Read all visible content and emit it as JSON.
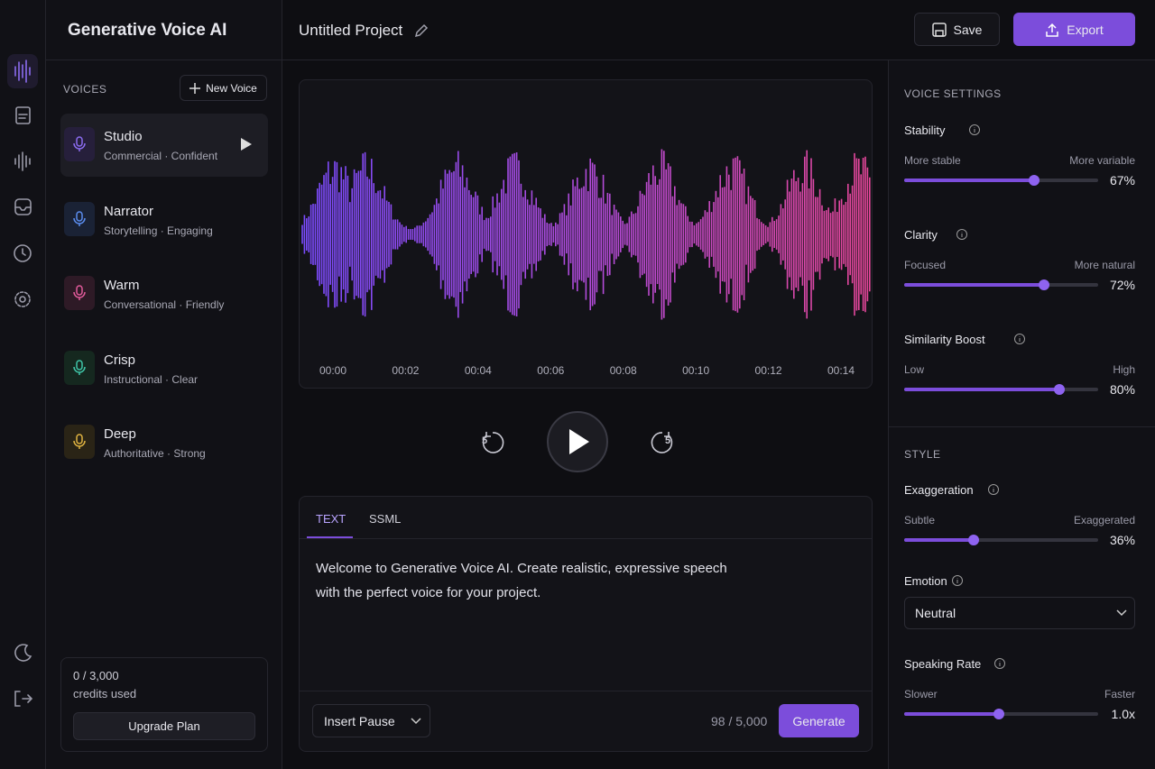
{
  "app": {
    "title": "Generative Voice AI"
  },
  "header": {
    "project": "Untitled Project",
    "save": "Save",
    "export": "Export"
  },
  "voices": {
    "heading": "VOICES",
    "new_voice": "New Voice",
    "items": [
      {
        "name": "Studio",
        "description": "Commercial · Confident"
      },
      {
        "name": "Narrator",
        "description": "Storytelling · Engaging"
      },
      {
        "name": "Warm",
        "description": "Conversational · Friendly"
      },
      {
        "name": "Crisp",
        "description": "Instructional · Clear"
      },
      {
        "name": "Deep",
        "description": "Authoritative · Strong"
      }
    ]
  },
  "credits": {
    "usage": "0 / 3,000",
    "caption": "credits used",
    "upgrade": "Upgrade Plan"
  },
  "player": {
    "timeline": [
      "00:00",
      "00:02",
      "00:04",
      "00:06",
      "00:08",
      "00:10",
      "00:12",
      "00:14"
    ],
    "skip_back": "5",
    "skip_forward": "5"
  },
  "editor": {
    "tabs": [
      "TEXT",
      "SSML"
    ],
    "lines": [
      "Welcome to Generative Voice AI. Create realistic, expressive speech",
      "with the perfect voice for your project."
    ],
    "insert_pause": "Insert Pause",
    "count": "98 / 5,000",
    "generate": "Generate"
  },
  "settings": {
    "heading": "VOICE SETTINGS",
    "sliders": [
      {
        "label": "Stability",
        "min_label": "More stable",
        "max_label": "More variable",
        "value": {
          "value": 67,
          "label": "67%"
        }
      },
      {
        "label": "Clarity",
        "min_label": "Focused",
        "max_label": "More natural",
        "value": {
          "value": 72,
          "label": "72%"
        }
      },
      {
        "label": "Similarity Boost",
        "min_label": "Low",
        "max_label": "High",
        "value": {
          "value": 80,
          "label": "80%"
        }
      }
    ],
    "style_heading": "STYLE",
    "exaggeration": {
      "label": "Exaggeration",
      "min_label": "Subtle",
      "max_label": "Exaggerated",
      "value": {
        "value": 36,
        "label": "36%"
      }
    },
    "emotion": {
      "label": "Emotion",
      "value": "Neutral"
    },
    "rate": {
      "label": "Speaking Rate",
      "min_label": "Slower",
      "max_label": "Faster",
      "value": "1.0x"
    }
  }
}
